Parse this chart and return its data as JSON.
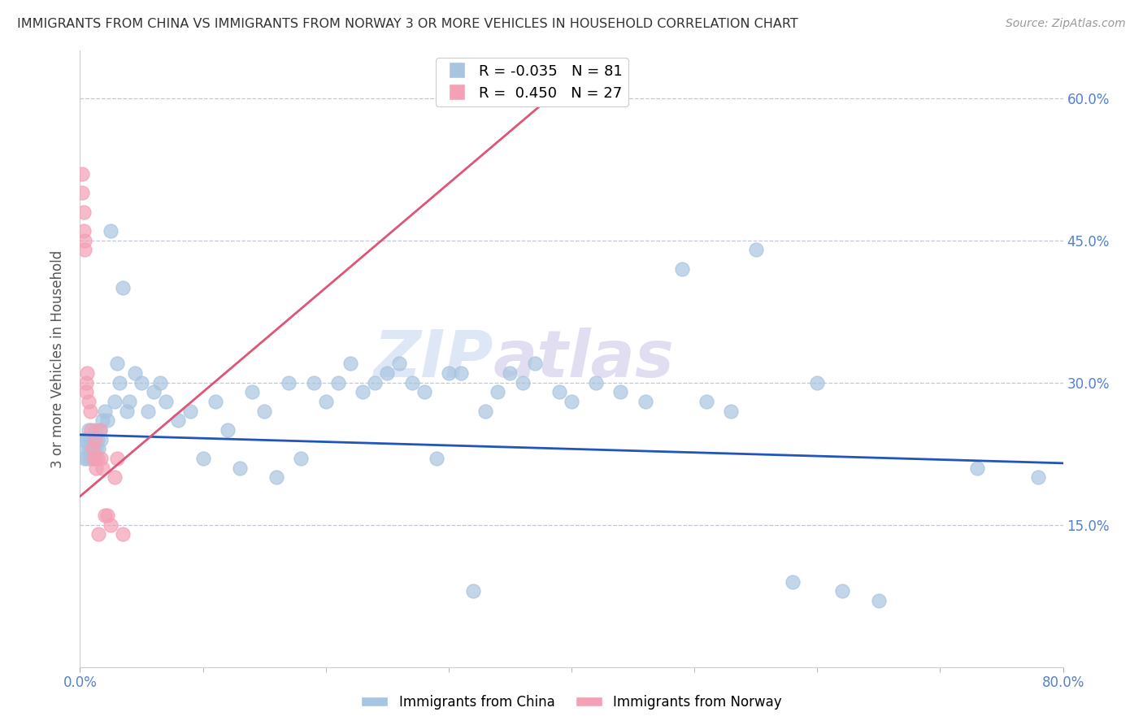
{
  "title": "IMMIGRANTS FROM CHINA VS IMMIGRANTS FROM NORWAY 3 OR MORE VEHICLES IN HOUSEHOLD CORRELATION CHART",
  "source": "Source: ZipAtlas.com",
  "xlabel_china": "Immigrants from China",
  "xlabel_norway": "Immigrants from Norway",
  "ylabel": "3 or more Vehicles in Household",
  "xlim": [
    0.0,
    0.8
  ],
  "ylim": [
    0.0,
    0.65
  ],
  "xticks": [
    0.0,
    0.8
  ],
  "yticks_right": [
    0.15,
    0.3,
    0.45,
    0.6
  ],
  "china_R": -0.035,
  "china_N": 81,
  "norway_R": 0.45,
  "norway_N": 27,
  "china_color": "#a8c4e0",
  "norway_color": "#f4a0b5",
  "china_line_color": "#2255bb",
  "norway_line_color": "#dd5577",
  "watermark_left": "ZIP",
  "watermark_right": "atlas",
  "china_x": [
    0.003,
    0.004,
    0.005,
    0.006,
    0.006,
    0.007,
    0.007,
    0.008,
    0.008,
    0.009,
    0.01,
    0.01,
    0.011,
    0.012,
    0.012,
    0.013,
    0.014,
    0.015,
    0.016,
    0.017,
    0.018,
    0.02,
    0.022,
    0.025,
    0.028,
    0.03,
    0.032,
    0.035,
    0.038,
    0.04,
    0.045,
    0.05,
    0.055,
    0.06,
    0.065,
    0.07,
    0.08,
    0.09,
    0.1,
    0.11,
    0.12,
    0.13,
    0.14,
    0.15,
    0.16,
    0.17,
    0.18,
    0.19,
    0.2,
    0.21,
    0.22,
    0.23,
    0.24,
    0.25,
    0.26,
    0.27,
    0.28,
    0.29,
    0.3,
    0.31,
    0.32,
    0.33,
    0.34,
    0.35,
    0.36,
    0.37,
    0.39,
    0.4,
    0.42,
    0.44,
    0.46,
    0.49,
    0.51,
    0.53,
    0.55,
    0.58,
    0.6,
    0.62,
    0.65,
    0.73,
    0.78
  ],
  "china_y": [
    0.24,
    0.22,
    0.23,
    0.22,
    0.24,
    0.23,
    0.25,
    0.22,
    0.24,
    0.23,
    0.22,
    0.24,
    0.23,
    0.22,
    0.25,
    0.23,
    0.24,
    0.23,
    0.25,
    0.24,
    0.26,
    0.27,
    0.26,
    0.46,
    0.28,
    0.32,
    0.3,
    0.4,
    0.27,
    0.28,
    0.31,
    0.3,
    0.27,
    0.29,
    0.3,
    0.28,
    0.26,
    0.27,
    0.22,
    0.28,
    0.25,
    0.21,
    0.29,
    0.27,
    0.2,
    0.3,
    0.22,
    0.3,
    0.28,
    0.3,
    0.32,
    0.29,
    0.3,
    0.31,
    0.32,
    0.3,
    0.29,
    0.22,
    0.31,
    0.31,
    0.08,
    0.27,
    0.29,
    0.31,
    0.3,
    0.32,
    0.29,
    0.28,
    0.3,
    0.29,
    0.28,
    0.42,
    0.28,
    0.27,
    0.44,
    0.09,
    0.3,
    0.08,
    0.07,
    0.21,
    0.2
  ],
  "norway_x": [
    0.002,
    0.002,
    0.003,
    0.003,
    0.004,
    0.004,
    0.005,
    0.005,
    0.006,
    0.007,
    0.008,
    0.009,
    0.01,
    0.011,
    0.012,
    0.013,
    0.014,
    0.015,
    0.016,
    0.017,
    0.018,
    0.02,
    0.022,
    0.025,
    0.028,
    0.03,
    0.035
  ],
  "norway_y": [
    0.5,
    0.52,
    0.46,
    0.48,
    0.44,
    0.45,
    0.3,
    0.29,
    0.31,
    0.28,
    0.27,
    0.25,
    0.23,
    0.22,
    0.24,
    0.21,
    0.22,
    0.14,
    0.25,
    0.22,
    0.21,
    0.16,
    0.16,
    0.15,
    0.2,
    0.22,
    0.14
  ],
  "norway_line_x0": 0.0,
  "norway_line_y0": 0.18,
  "norway_line_x1": 0.4,
  "norway_line_y1": 0.62,
  "china_line_x0": 0.0,
  "china_line_y0": 0.245,
  "china_line_x1": 0.8,
  "china_line_y1": 0.215
}
